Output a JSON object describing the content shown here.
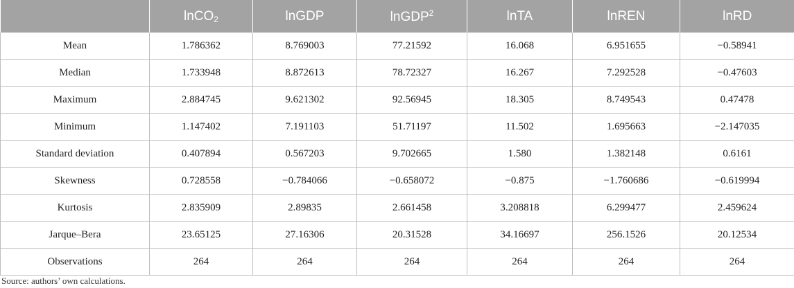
{
  "table": {
    "headers": [
      {
        "base": "",
        "sub": "",
        "sup": ""
      },
      {
        "base": "lnCO",
        "sub": "2",
        "sup": ""
      },
      {
        "base": "lnGDP",
        "sub": "",
        "sup": ""
      },
      {
        "base": "lnGDP",
        "sub": "",
        "sup": "2"
      },
      {
        "base": "lnTA",
        "sub": "",
        "sup": ""
      },
      {
        "base": "lnREN",
        "sub": "",
        "sup": ""
      },
      {
        "base": "lnRD",
        "sub": "",
        "sup": ""
      }
    ],
    "rows": [
      [
        "Mean",
        "1.786362",
        "8.769003",
        "77.21592",
        "16.068",
        "6.951655",
        "−0.58941"
      ],
      [
        "Median",
        "1.733948",
        "8.872613",
        "78.72327",
        "16.267",
        "7.292528",
        "−0.47603"
      ],
      [
        "Maximum",
        "2.884745",
        "9.621302",
        "92.56945",
        "18.305",
        "8.749543",
        "0.47478"
      ],
      [
        "Minimum",
        "1.147402",
        "7.191103",
        "51.71197",
        "11.502",
        "1.695663",
        "−2.147035"
      ],
      [
        "Standard deviation",
        "0.407894",
        "0.567203",
        "9.702665",
        "1.580",
        "1.382148",
        "0.6161"
      ],
      [
        "Skewness",
        "0.728558",
        "−0.784066",
        "−0.658072",
        "−0.875",
        "−1.760686",
        "−0.619994"
      ],
      [
        "Kurtosis",
        "2.835909",
        "2.89835",
        "2.661458",
        "3.208818",
        "6.299477",
        "2.459624"
      ],
      [
        "Jarque–Bera",
        "23.65125",
        "27.16306",
        "20.31528",
        "34.16697",
        "256.1526",
        "20.12534"
      ],
      [
        "Observations",
        "264",
        "264",
        "264",
        "264",
        "264",
        "264"
      ]
    ]
  },
  "source_note": "Source: authors’ own calculations.",
  "colors": {
    "header_bg": "#a3a3a3",
    "header_text": "#ffffff",
    "grid": "#bdbdbd"
  }
}
